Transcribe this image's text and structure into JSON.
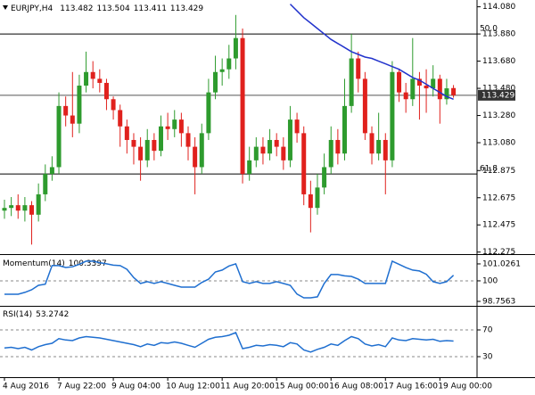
{
  "chart_data": [
    {
      "type": "candlestick",
      "title": "EURJPY,H4",
      "categories": [
        "4 Aug 2016",
        null,
        null,
        null,
        null,
        null,
        null,
        null,
        "7 Aug 22:00",
        null,
        null,
        null,
        null,
        null,
        null,
        null,
        "9 Aug 04:00",
        null,
        null,
        null,
        null,
        null,
        null,
        null,
        "10 Aug 12:00",
        null,
        null,
        null,
        null,
        null,
        null,
        null,
        "11 Aug 20:00",
        null,
        null,
        null,
        null,
        null,
        null,
        null,
        "15 Aug 00:00",
        null,
        null,
        null,
        null,
        null,
        null,
        null,
        "16 Aug 08:00",
        null,
        null,
        null,
        null,
        null,
        null,
        null,
        "17 Aug 16:00",
        null,
        null,
        null,
        null,
        null,
        null,
        null,
        "19 Aug 00:00",
        null,
        null
      ],
      "open": [
        112.58,
        112.6,
        112.62,
        112.58,
        112.62,
        112.55,
        112.7,
        112.85,
        112.9,
        113.35,
        113.28,
        113.22,
        113.5,
        113.6,
        113.55,
        113.52,
        113.4,
        113.32,
        113.2,
        113.1,
        113.05,
        112.95,
        113.1,
        113.02,
        113.2,
        113.18,
        113.25,
        113.15,
        113.05,
        112.9,
        113.15,
        113.45,
        113.6,
        113.62,
        113.7,
        113.85,
        112.85,
        112.95,
        113.05,
        113.0,
        113.1,
        113.05,
        112.95,
        113.25,
        113.15,
        112.7,
        112.6,
        112.75,
        112.9,
        113.1,
        113.0,
        113.35,
        113.7,
        113.55,
        113.15,
        113.0,
        113.1,
        112.95,
        113.6,
        113.45,
        113.4,
        113.55,
        113.5,
        113.48,
        113.55,
        113.4,
        113.482
      ],
      "high": [
        112.66,
        112.68,
        112.7,
        112.68,
        112.65,
        112.78,
        112.92,
        112.98,
        113.45,
        113.42,
        113.6,
        113.58,
        113.75,
        113.68,
        113.62,
        113.55,
        113.42,
        113.36,
        113.25,
        113.15,
        113.12,
        113.18,
        113.15,
        113.28,
        113.3,
        113.32,
        113.3,
        113.2,
        113.12,
        113.22,
        113.55,
        113.72,
        113.7,
        113.8,
        114.02,
        113.92,
        113.05,
        113.12,
        113.12,
        113.18,
        113.15,
        113.12,
        113.35,
        113.3,
        113.2,
        112.8,
        112.85,
        113.0,
        113.2,
        113.18,
        113.55,
        113.88,
        113.75,
        113.6,
        113.2,
        113.3,
        113.15,
        113.68,
        113.62,
        113.52,
        113.85,
        113.6,
        113.62,
        113.65,
        113.58,
        113.55,
        113.504
      ],
      "low": [
        112.52,
        112.54,
        112.52,
        112.5,
        112.33,
        112.5,
        112.65,
        112.8,
        112.85,
        113.2,
        113.12,
        113.15,
        113.45,
        113.48,
        113.45,
        113.32,
        113.25,
        113.05,
        113.0,
        112.92,
        112.8,
        112.9,
        112.95,
        112.98,
        113.1,
        113.12,
        113.05,
        112.95,
        112.7,
        112.85,
        113.1,
        113.4,
        113.5,
        113.55,
        113.62,
        112.78,
        112.8,
        112.9,
        112.92,
        112.95,
        112.98,
        112.88,
        112.9,
        113.08,
        112.62,
        112.42,
        112.55,
        112.7,
        112.85,
        112.92,
        112.95,
        113.3,
        113.45,
        113.1,
        112.92,
        112.95,
        112.7,
        112.9,
        113.38,
        113.3,
        113.35,
        113.25,
        113.3,
        113.42,
        113.22,
        113.36,
        113.411
      ],
      "close": [
        112.6,
        112.62,
        112.58,
        112.62,
        112.55,
        112.7,
        112.85,
        112.9,
        113.35,
        113.28,
        113.22,
        113.5,
        113.6,
        113.55,
        113.52,
        113.4,
        113.32,
        113.2,
        113.1,
        113.05,
        112.95,
        113.1,
        113.02,
        113.2,
        113.18,
        113.25,
        113.15,
        113.05,
        112.9,
        113.15,
        113.45,
        113.6,
        113.62,
        113.7,
        113.85,
        112.85,
        112.95,
        113.05,
        113.0,
        113.1,
        113.05,
        112.95,
        113.25,
        113.15,
        112.7,
        112.6,
        112.75,
        112.9,
        113.1,
        113.0,
        113.35,
        113.7,
        113.55,
        113.15,
        113.0,
        113.1,
        112.95,
        113.6,
        113.45,
        113.4,
        113.55,
        113.5,
        113.48,
        113.55,
        113.4,
        113.48,
        113.429
      ],
      "up_color": "#2e9b2e",
      "down_color": "#e0211d",
      "overlay": {
        "color": "#2233cc",
        "values": [
          null,
          null,
          null,
          null,
          null,
          null,
          null,
          null,
          null,
          null,
          null,
          null,
          null,
          null,
          null,
          null,
          null,
          null,
          null,
          null,
          null,
          null,
          null,
          null,
          null,
          null,
          null,
          null,
          null,
          null,
          null,
          null,
          null,
          null,
          null,
          null,
          null,
          null,
          null,
          null,
          null,
          null,
          114.1,
          114.05,
          114.0,
          113.96,
          113.92,
          113.88,
          113.84,
          113.81,
          113.78,
          113.75,
          113.73,
          113.71,
          113.7,
          113.68,
          113.66,
          113.64,
          113.62,
          113.59,
          113.56,
          113.54,
          113.51,
          113.48,
          113.45,
          113.42,
          113.4
        ]
      },
      "levels": [
        {
          "value": 113.88,
          "label": "50.0"
        },
        {
          "value": 112.85,
          "label": "61.8"
        }
      ],
      "ylim": [
        112.26,
        114.13
      ],
      "yticks": [
        {
          "value": 114.08,
          "label": "114.080"
        },
        {
          "value": 113.88,
          "label": "113.880"
        },
        {
          "value": 113.68,
          "label": "113.680"
        },
        {
          "value": 113.48,
          "label": "113.480"
        },
        {
          "value": 113.28,
          "label": "113.280"
        },
        {
          "value": 113.08,
          "label": "113.080"
        },
        112.875,
        112.675,
        112.475,
        112.275
      ]
    },
    {
      "type": "line",
      "title": "Momentum(14)",
      "color": "#1f6fd0",
      "values": [
        99.19,
        99.19,
        99.19,
        99.3,
        99.46,
        99.73,
        99.8,
        100.92,
        100.92,
        100.81,
        100.85,
        101.0,
        101.19,
        101.19,
        101.1,
        101.03,
        100.95,
        100.92,
        100.7,
        100.2,
        99.84,
        99.95,
        99.84,
        99.95,
        99.84,
        99.73,
        99.62,
        99.62,
        99.62,
        99.9,
        100.1,
        100.54,
        100.65,
        100.9,
        101.03,
        99.95,
        99.84,
        99.95,
        99.84,
        99.84,
        99.95,
        99.84,
        99.73,
        99.2,
        98.97,
        98.97,
        99.03,
        99.84,
        100.38,
        100.38,
        100.3,
        100.27,
        100.1,
        99.84,
        99.84,
        99.84,
        99.84,
        101.19,
        101.0,
        100.8,
        100.65,
        100.6,
        100.4,
        99.95,
        99.84,
        99.95,
        100.3397
      ],
      "ylim": [
        98.54,
        101.51
      ],
      "yticks": [
        101.0261,
        100,
        98.7563
      ],
      "dashed": [
        100
      ]
    },
    {
      "type": "line",
      "title": "RSI(14)",
      "color": "#1f6fd0",
      "values": [
        43,
        44,
        42,
        44,
        40,
        45,
        48,
        50,
        57,
        55,
        54,
        58,
        60,
        59,
        58,
        56,
        54,
        52,
        50,
        48,
        45,
        49,
        47,
        51,
        50,
        52,
        50,
        47,
        44,
        50,
        56,
        59,
        60,
        62,
        66,
        42,
        44,
        47,
        46,
        48,
        47,
        45,
        51,
        49,
        40,
        37,
        41,
        44,
        49,
        47,
        54,
        60,
        57,
        49,
        46,
        48,
        45,
        58,
        55,
        54,
        57,
        56,
        55,
        56,
        53,
        54,
        53.2742
      ],
      "ylim": [
        0,
        100
      ],
      "yticks": [
        70,
        30
      ],
      "dashed": [
        70,
        30
      ]
    }
  ]
}
